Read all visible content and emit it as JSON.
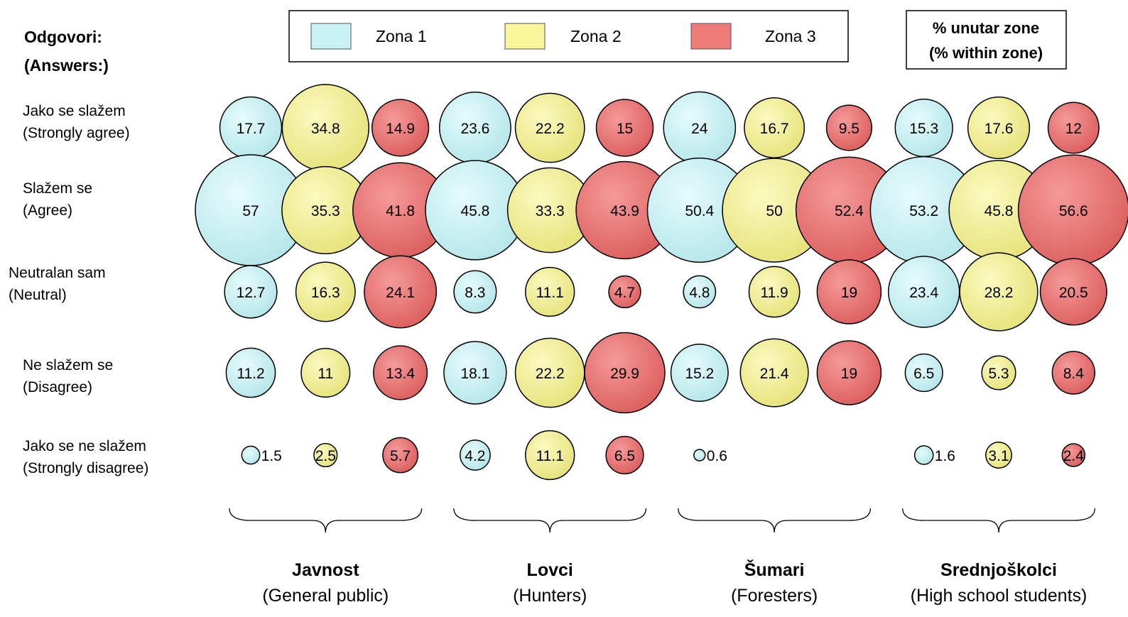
{
  "heading": {
    "line1": "Odgovori:",
    "line2": "(Answers:)"
  },
  "pct_box": {
    "line1": "% unutar zone",
    "line2": "(% within zone)"
  },
  "chart_data": {
    "type": "bubble",
    "title": "",
    "legend": [
      "Zona 1",
      "Zona 2",
      "Zona 3"
    ],
    "legend_placement": "top-center",
    "colors": {
      "Zona 1": "#c8f2f4",
      "Zona 2": "#f8f59a",
      "Zona 3": "#ee7a7a"
    },
    "rows": [
      {
        "label_hr": "Jako se slažem",
        "label_en": "(Strongly agree)"
      },
      {
        "label_hr": "Slažem se",
        "label_en": "(Agree)"
      },
      {
        "label_hr": "Neutralan sam",
        "label_en": "(Neutral)"
      },
      {
        "label_hr": "Ne slažem se",
        "label_en": "(Disagree)"
      },
      {
        "label_hr": "Jako se ne slažem",
        "label_en": "(Strongly disagree)"
      }
    ],
    "groups": [
      {
        "name": "Javnost",
        "subtitle": "(General public)",
        "zones": [
          [
            17.7,
            57,
            12.7,
            11.2,
            1.5
          ],
          [
            34.8,
            35.3,
            16.3,
            11,
            2.5
          ],
          [
            14.9,
            41.8,
            24.1,
            13.4,
            5.7
          ]
        ]
      },
      {
        "name": "Lovci",
        "subtitle": "(Hunters)",
        "zones": [
          [
            23.6,
            45.8,
            8.3,
            18.1,
            4.2
          ],
          [
            22.2,
            33.3,
            11.1,
            22.2,
            11.1
          ],
          [
            15,
            43.9,
            4.7,
            29.9,
            6.5
          ]
        ]
      },
      {
        "name": "Šumari",
        "subtitle": "(Foresters)",
        "zones": [
          [
            24,
            50.4,
            4.8,
            15.2,
            0.6
          ],
          [
            16.7,
            50,
            11.9,
            21.4,
            null
          ],
          [
            9.5,
            52.4,
            19,
            19,
            null
          ]
        ]
      },
      {
        "name": "Srednjoškolci",
        "subtitle": "(High school students)",
        "zones": [
          [
            15.3,
            53.2,
            23.4,
            6.5,
            1.6
          ],
          [
            17.6,
            45.8,
            28.2,
            5.3,
            3.1
          ],
          [
            12,
            56.6,
            20.5,
            8.4,
            2.4
          ]
        ]
      }
    ]
  }
}
